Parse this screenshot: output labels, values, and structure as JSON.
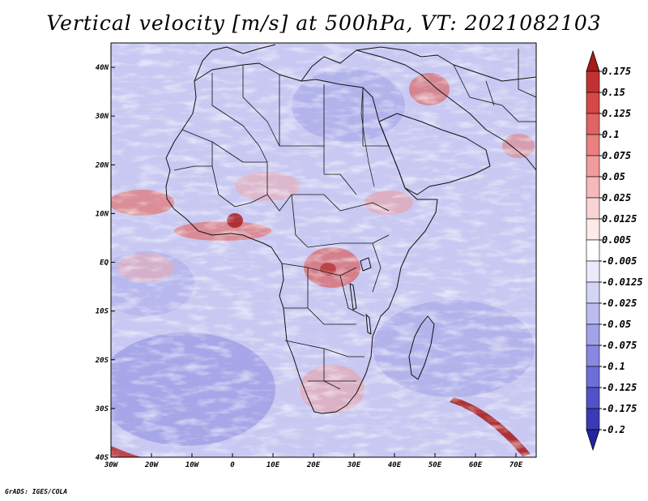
{
  "title": "Vertical velocity [m/s] at 500hPa, VT: 2021082103",
  "credit": "GrADS: IGES/COLA",
  "map": {
    "lon_range": [
      -30,
      75
    ],
    "lat_range": [
      -40,
      45
    ],
    "x_ticks": [
      {
        "value": -30,
        "label": "30W"
      },
      {
        "value": -20,
        "label": "20W"
      },
      {
        "value": -10,
        "label": "10W"
      },
      {
        "value": 0,
        "label": "0"
      },
      {
        "value": 10,
        "label": "10E"
      },
      {
        "value": 20,
        "label": "20E"
      },
      {
        "value": 30,
        "label": "30E"
      },
      {
        "value": 40,
        "label": "40E"
      },
      {
        "value": 50,
        "label": "50E"
      },
      {
        "value": 60,
        "label": "60E"
      },
      {
        "value": 70,
        "label": "70E"
      }
    ],
    "y_ticks": [
      {
        "value": 40,
        "label": "40N"
      },
      {
        "value": 30,
        "label": "30N"
      },
      {
        "value": 20,
        "label": "20N"
      },
      {
        "value": 10,
        "label": "10N"
      },
      {
        "value": 0,
        "label": "EQ"
      },
      {
        "value": -10,
        "label": "10S"
      },
      {
        "value": -20,
        "label": "20S"
      },
      {
        "value": -30,
        "label": "30S"
      },
      {
        "value": -40,
        "label": "40S"
      }
    ]
  },
  "colorbar": {
    "labels": [
      "0.175",
      "0.15",
      "0.125",
      "0.1",
      "0.075",
      "0.05",
      "0.025",
      "0.0125",
      "0.005",
      "-0.005",
      "-0.0125",
      "-0.025",
      "-0.05",
      "-0.075",
      "-0.1",
      "-0.125",
      "-0.175",
      "-0.2"
    ],
    "colors": [
      "#a81c1c",
      "#c23232",
      "#d44848",
      "#e06464",
      "#ea8080",
      "#f19c9c",
      "#f6b8b8",
      "#fad4d4",
      "#fdeaea",
      "#ffffff",
      "#eaeafb",
      "#d4d4f6",
      "#bcbcf0",
      "#a2a2ea",
      "#8888e2",
      "#6e6ed8",
      "#5252c8",
      "#3a3ab4",
      "#2424a0"
    ]
  },
  "colors": {
    "field_base": "#c8c8f2",
    "ascent": "#e88888",
    "strong_ascent": "#a82020",
    "descent": "#7070d8",
    "border": "#111111"
  }
}
